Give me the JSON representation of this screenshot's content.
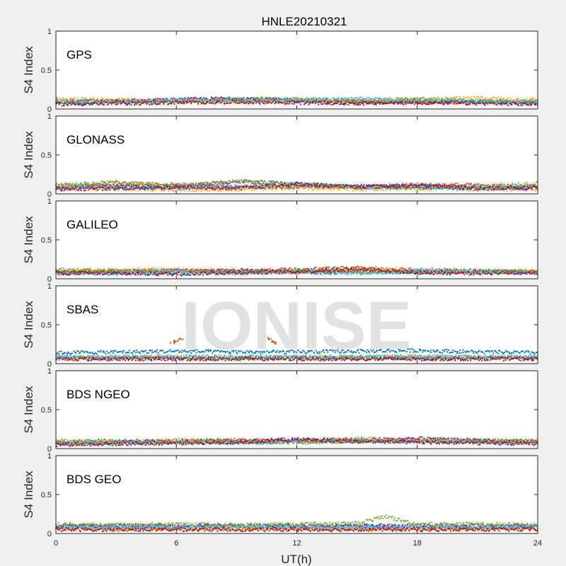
{
  "chart_data": {
    "type": "scatter",
    "title": "HNLE20210321",
    "xlabel": "UT(h)",
    "ylabel": "S4 Index",
    "xlim": [
      0,
      24
    ],
    "ylim": [
      0,
      1
    ],
    "xticks": [
      "0",
      "6",
      "12",
      "18",
      "24"
    ],
    "yticks": [
      "0",
      "0.5",
      "1"
    ],
    "watermark": "IONISE",
    "series_colors": [
      "#0072BD",
      "#D95319",
      "#EDB120",
      "#7E2F8E",
      "#77AC30",
      "#4DBEEE",
      "#A2142F"
    ],
    "panels": [
      {
        "label": "GPS",
        "series": [
          {
            "x": [
              0,
              3,
              6,
              9,
              12,
              15,
              18,
              21,
              24
            ],
            "y": [
              0.08,
              0.09,
              0.11,
              0.12,
              0.1,
              0.08,
              0.09,
              0.1,
              0.08
            ]
          },
          {
            "x": [
              0,
              3,
              6,
              9,
              12,
              15,
              18,
              21,
              24
            ],
            "y": [
              0.11,
              0.1,
              0.09,
              0.11,
              0.12,
              0.1,
              0.08,
              0.09,
              0.1
            ]
          },
          {
            "x": [
              0,
              3,
              6,
              9,
              12,
              15,
              18,
              21,
              24
            ],
            "y": [
              0.13,
              0.12,
              0.1,
              0.09,
              0.1,
              0.11,
              0.12,
              0.14,
              0.12
            ]
          },
          {
            "x": [
              0,
              3,
              6,
              9,
              12,
              15,
              18,
              21,
              24
            ],
            "y": [
              0.09,
              0.1,
              0.12,
              0.14,
              0.11,
              0.09,
              0.1,
              0.09,
              0.08
            ]
          },
          {
            "x": [
              0,
              3,
              6,
              9,
              12,
              15,
              18,
              21,
              24
            ],
            "y": [
              0.07,
              0.08,
              0.1,
              0.12,
              0.13,
              0.11,
              0.13,
              0.1,
              0.09
            ]
          },
          {
            "x": [
              0,
              3,
              6,
              9,
              12,
              15,
              18,
              21,
              24
            ],
            "y": [
              0.1,
              0.09,
              0.11,
              0.1,
              0.12,
              0.13,
              0.11,
              0.1,
              0.09
            ]
          },
          {
            "x": [
              0,
              3,
              6,
              9,
              12,
              15,
              18,
              21,
              24
            ],
            "y": [
              0.06,
              0.07,
              0.08,
              0.09,
              0.08,
              0.07,
              0.08,
              0.07,
              0.06
            ]
          }
        ]
      },
      {
        "label": "GLONASS",
        "series": [
          {
            "x": [
              0,
              3,
              6,
              9,
              12,
              15,
              18,
              21,
              24
            ],
            "y": [
              0.08,
              0.09,
              0.1,
              0.08,
              0.09,
              0.1,
              0.11,
              0.09,
              0.08
            ]
          },
          {
            "x": [
              0,
              3,
              6,
              9,
              12,
              15,
              18,
              21,
              24
            ],
            "y": [
              0.1,
              0.14,
              0.12,
              0.09,
              0.1,
              0.09,
              0.12,
              0.11,
              0.09
            ]
          },
          {
            "x": [
              0,
              3,
              6,
              9,
              12,
              15,
              18,
              21,
              24
            ],
            "y": [
              0.06,
              0.07,
              0.05,
              0.06,
              0.07,
              0.06,
              0.07,
              0.06,
              0.06
            ]
          },
          {
            "x": [
              0,
              3,
              6,
              9,
              12,
              15,
              18,
              21,
              24
            ],
            "y": [
              0.07,
              0.1,
              0.09,
              0.16,
              0.12,
              0.09,
              0.1,
              0.08,
              0.07
            ]
          },
          {
            "x": [
              0,
              3,
              6,
              9,
              12,
              15,
              18,
              21,
              24
            ],
            "y": [
              0.11,
              0.15,
              0.1,
              0.17,
              0.13,
              0.08,
              0.07,
              0.09,
              0.14
            ]
          },
          {
            "x": [
              0,
              3,
              6,
              9,
              12,
              15,
              18,
              21,
              24
            ],
            "y": [
              0.09,
              0.08,
              0.07,
              0.1,
              0.13,
              0.09,
              0.08,
              0.07,
              0.09
            ]
          },
          {
            "x": [
              0,
              3,
              6,
              9,
              12,
              15,
              18,
              21,
              24
            ],
            "y": [
              0.06,
              0.07,
              0.08,
              0.07,
              0.13,
              0.09,
              0.1,
              0.07,
              0.08
            ]
          }
        ]
      },
      {
        "label": "GALILEO",
        "series": [
          {
            "x": [
              0,
              3,
              6,
              9,
              12,
              15,
              18,
              21,
              24
            ],
            "y": [
              0.08,
              0.07,
              0.08,
              0.09,
              0.11,
              0.1,
              0.08,
              0.09,
              0.08
            ]
          },
          {
            "x": [
              0,
              3,
              6,
              9,
              12,
              15,
              18,
              21,
              24
            ],
            "y": [
              0.09,
              0.1,
              0.11,
              0.1,
              0.12,
              0.14,
              0.12,
              0.1,
              0.09
            ]
          },
          {
            "x": [
              0,
              3,
              6,
              9,
              12,
              15,
              18,
              21,
              24
            ],
            "y": [
              0.1,
              0.11,
              0.12,
              0.09,
              0.08,
              0.1,
              0.11,
              0.09,
              0.1
            ]
          },
          {
            "x": [
              0,
              3,
              6,
              9,
              12,
              15,
              18,
              21,
              24
            ],
            "y": [
              0.07,
              0.09,
              0.1,
              0.11,
              0.09,
              0.08,
              0.09,
              0.1,
              0.08
            ]
          },
          {
            "x": [
              0,
              3,
              6,
              9,
              12,
              15,
              18,
              21,
              24
            ],
            "y": [
              0.12,
              0.1,
              0.09,
              0.08,
              0.1,
              0.09,
              0.08,
              0.09,
              0.1
            ]
          },
          {
            "x": [
              0,
              3,
              6,
              9,
              12,
              15,
              18,
              21,
              24
            ],
            "y": [
              0.06,
              0.08,
              0.09,
              0.07,
              0.08,
              0.07,
              0.1,
              0.09,
              0.07
            ]
          },
          {
            "x": [
              0,
              3,
              6,
              9,
              12,
              15,
              18,
              21,
              24
            ],
            "y": [
              0.08,
              0.07,
              0.06,
              0.08,
              0.09,
              0.13,
              0.08,
              0.07,
              0.08
            ]
          }
        ]
      },
      {
        "label": "SBAS",
        "series": [
          {
            "x": [
              0,
              3,
              6,
              9,
              12,
              15,
              18,
              21,
              24
            ],
            "y": [
              0.14,
              0.15,
              0.16,
              0.15,
              0.15,
              0.16,
              0.17,
              0.15,
              0.14
            ]
          },
          {
            "x": [
              5.8,
              6.0,
              6.2,
              10.6,
              10.8,
              11.0
            ],
            "y": [
              0.27,
              0.29,
              0.31,
              0.32,
              0.28,
              0.26
            ]
          },
          {
            "x": [
              0,
              3,
              6,
              9,
              12,
              15,
              18,
              21,
              24
            ],
            "y": [
              0.08,
              0.08,
              0.09,
              0.08,
              0.08,
              0.09,
              0.1,
              0.08,
              0.08
            ]
          },
          {
            "x": [
              0,
              3,
              6,
              9,
              12,
              15,
              18,
              21,
              24
            ],
            "y": [
              0.07,
              0.07,
              0.07,
              0.07,
              0.07,
              0.07,
              0.07,
              0.07,
              0.07
            ]
          },
          {
            "x": [
              0,
              3,
              6,
              9,
              12,
              15,
              18,
              21,
              24
            ],
            "y": [
              0.08,
              0.08,
              0.08,
              0.08,
              0.08,
              0.08,
              0.08,
              0.08,
              0.08
            ]
          },
          {
            "x": [
              0,
              3,
              6,
              9,
              12,
              15,
              18,
              21,
              24
            ],
            "y": [
              0.09,
              0.09,
              0.09,
              0.09,
              0.09,
              0.09,
              0.09,
              0.09,
              0.09
            ]
          },
          {
            "x": [
              0,
              3,
              6,
              9,
              12,
              15,
              18,
              21,
              24
            ],
            "y": [
              0.06,
              0.06,
              0.06,
              0.06,
              0.06,
              0.06,
              0.06,
              0.06,
              0.06
            ]
          }
        ]
      },
      {
        "label": "BDS NGEO",
        "series": [
          {
            "x": [
              0,
              3,
              6,
              9,
              12,
              15,
              18,
              21,
              24
            ],
            "y": [
              0.08,
              0.1,
              0.09,
              0.08,
              0.09,
              0.1,
              0.09,
              0.1,
              0.08
            ]
          },
          {
            "x": [
              0,
              3,
              6,
              9,
              12,
              15,
              18,
              21,
              24
            ],
            "y": [
              0.07,
              0.08,
              0.1,
              0.11,
              0.09,
              0.1,
              0.12,
              0.11,
              0.09
            ]
          },
          {
            "x": [
              0,
              3,
              6,
              9,
              12,
              15,
              18,
              21,
              24
            ],
            "y": [
              0.09,
              0.08,
              0.11,
              0.09,
              0.1,
              0.13,
              0.11,
              0.09,
              0.08
            ]
          },
          {
            "x": [
              0,
              3,
              6,
              9,
              12,
              15,
              18,
              21,
              24
            ],
            "y": [
              0.06,
              0.08,
              0.09,
              0.1,
              0.12,
              0.11,
              0.13,
              0.1,
              0.08
            ]
          },
          {
            "x": [
              0,
              3,
              6,
              9,
              12,
              15,
              18,
              21,
              24
            ],
            "y": [
              0.1,
              0.09,
              0.08,
              0.09,
              0.08,
              0.09,
              0.1,
              0.09,
              0.1
            ]
          },
          {
            "x": [
              0,
              3,
              6,
              9,
              12,
              15,
              18,
              21,
              24
            ],
            "y": [
              0.07,
              0.06,
              0.08,
              0.07,
              0.09,
              0.11,
              0.1,
              0.08,
              0.07
            ]
          },
          {
            "x": [
              0,
              3,
              6,
              9,
              12,
              15,
              18,
              21,
              24
            ],
            "y": [
              0.05,
              0.06,
              0.07,
              0.08,
              0.11,
              0.09,
              0.08,
              0.07,
              0.06
            ]
          }
        ]
      },
      {
        "label": "BDS GEO",
        "series": [
          {
            "x": [
              0,
              3,
              6,
              9,
              12,
              15,
              18,
              21,
              24
            ],
            "y": [
              0.09,
              0.09,
              0.09,
              0.09,
              0.09,
              0.09,
              0.09,
              0.09,
              0.09
            ]
          },
          {
            "x": [
              0,
              3,
              6,
              9,
              12,
              15,
              18,
              21,
              24
            ],
            "y": [
              0.06,
              0.06,
              0.06,
              0.06,
              0.06,
              0.06,
              0.06,
              0.06,
              0.06
            ]
          },
          {
            "x": [
              0,
              3,
              6,
              9,
              12,
              15,
              18,
              21,
              24
            ],
            "y": [
              0.07,
              0.07,
              0.07,
              0.07,
              0.07,
              0.07,
              0.07,
              0.07,
              0.07
            ]
          },
          {
            "x": [
              0,
              3,
              6,
              9,
              12,
              15,
              18,
              21,
              24
            ],
            "y": [
              0.1,
              0.1,
              0.1,
              0.1,
              0.1,
              0.1,
              0.1,
              0.1,
              0.1
            ]
          },
          {
            "x": [
              0,
              3,
              6,
              9,
              12,
              15,
              16.5,
              17,
              18,
              21,
              24
            ],
            "y": [
              0.12,
              0.11,
              0.12,
              0.11,
              0.12,
              0.13,
              0.22,
              0.18,
              0.12,
              0.12,
              0.11
            ]
          },
          {
            "x": [
              0,
              3,
              6,
              9,
              12,
              15,
              18,
              21,
              24
            ],
            "y": [
              0.08,
              0.08,
              0.08,
              0.08,
              0.08,
              0.08,
              0.08,
              0.08,
              0.08
            ]
          },
          {
            "x": [
              0,
              3,
              6,
              9,
              12,
              15,
              18,
              21,
              24
            ],
            "y": [
              0.05,
              0.05,
              0.05,
              0.05,
              0.05,
              0.05,
              0.05,
              0.05,
              0.05
            ]
          }
        ]
      }
    ]
  }
}
